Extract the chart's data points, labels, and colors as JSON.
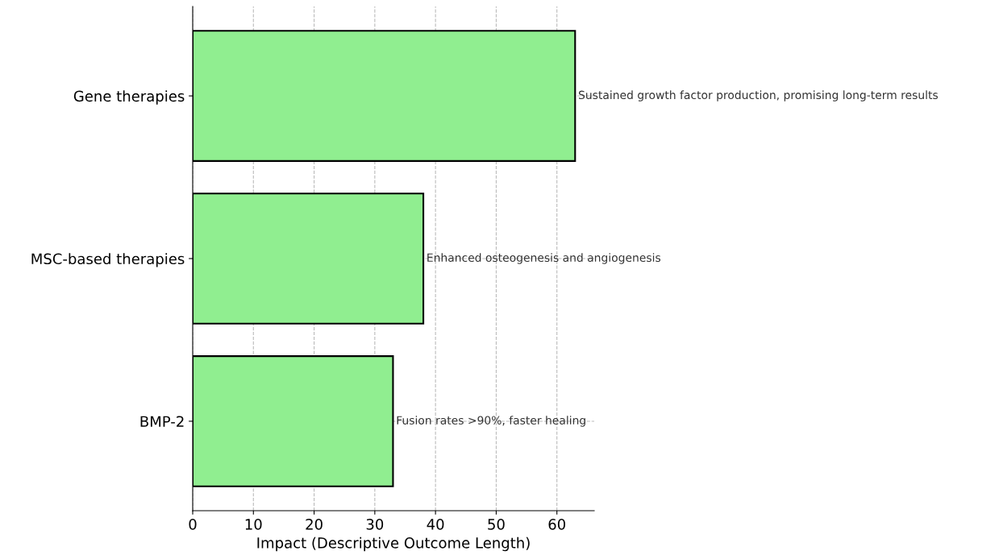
{
  "chart_data": {
    "type": "bar",
    "orientation": "horizontal",
    "categories": [
      "Gene therapies",
      "MSC-based therapies",
      "BMP-2"
    ],
    "values": [
      63,
      38,
      33
    ],
    "color": "#90ee90",
    "xlabel": "Impact (Descriptive Outcome Length)",
    "xlim": [
      0,
      66.15
    ],
    "xticks": [
      0,
      10,
      20,
      30,
      40,
      50,
      60
    ],
    "grid": true,
    "annotations": [
      {
        "text": "Sustained growth factor production, promising long-term results",
        "x": 63,
        "y": "Gene therapies"
      },
      {
        "text": "Enhanced osteogenesis and angiogenesis",
        "x": 38,
        "y": "MSC-based therapies"
      },
      {
        "text": "Fusion rates >90%, faster healing",
        "x": 33,
        "y": "BMP-2"
      }
    ]
  }
}
